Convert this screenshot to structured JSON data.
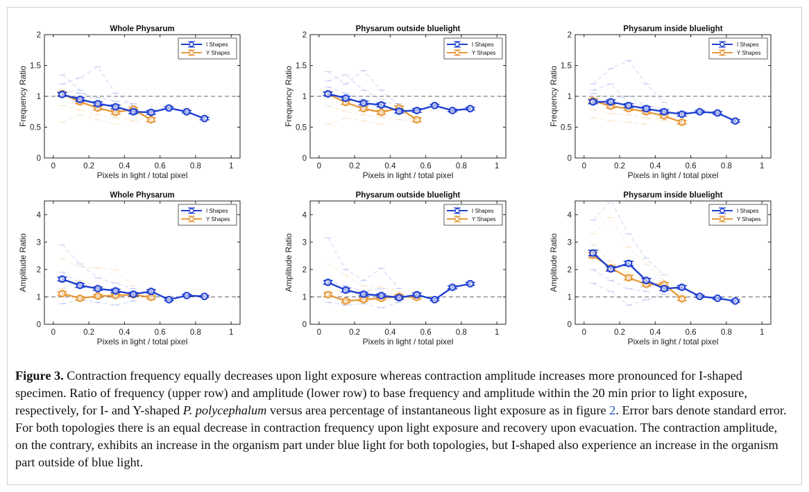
{
  "caption": {
    "label": "Figure 3.",
    "text1": " Contraction frequency equally decreases upon light exposure whereas contraction amplitude increases more pronounced for I-shaped specimen. Ratio of frequency (upper row) and amplitude (lower row) to base frequency and amplitude within the 20 min prior to light exposure, respectively, for I- and Y-shaped ",
    "species": "P. polycephalum",
    "text2": "  versus area percentage of instantaneous light exposure as in figure ",
    "figref": "2",
    "text3": ". Error bars denote standard error. For both topologies there is an equal decrease in contraction frequency upon light exposure and recovery upon evacuation. The contraction amplitude, on the contrary, exhibits an increase in the organism part under blue light for both topologies, but I-shaped also experience an increase in the organism part outside of blue light."
  },
  "colors": {
    "I": "#1f3fd1",
    "Y": "#e69a3c",
    "axis": "#222222",
    "ref": "#666666"
  },
  "chart_data": [
    {
      "type": "line",
      "title": "Whole Physarum",
      "xlabel": "Pixels in light / total pixel",
      "ylabel": "Frequency Ratio",
      "xlim": [
        -0.05,
        1.05
      ],
      "ylim": [
        0,
        2
      ],
      "xticks": [
        0,
        0.2,
        0.4,
        0.6,
        0.8,
        1
      ],
      "xticklabels": [
        "0",
        "0.2",
        "0.4",
        "0.6",
        "0.8",
        "1"
      ],
      "yticks": [
        0,
        0.5,
        1,
        1.5,
        2
      ],
      "yticklabels": [
        "0",
        "0.5",
        "1",
        "1.5",
        "2"
      ],
      "reference_line": 1,
      "legend": [
        "I Shapes",
        "Y Shapes"
      ],
      "legend_position": "top-right",
      "series": [
        {
          "name": "I Shapes",
          "x": [
            0.05,
            0.15,
            0.25,
            0.35,
            0.45,
            0.55,
            0.65,
            0.75,
            0.85
          ],
          "y": [
            1.03,
            0.95,
            0.88,
            0.83,
            0.75,
            0.74,
            0.81,
            0.75,
            0.64
          ],
          "err": [
            0.03,
            0.03,
            0.03,
            0.03,
            0.03,
            0.03,
            0.02,
            0.02,
            0.02
          ]
        },
        {
          "name": "Y Shapes",
          "x": [
            0.05,
            0.15,
            0.25,
            0.35,
            0.45,
            0.55
          ],
          "y": [
            1.04,
            0.91,
            0.81,
            0.74,
            0.79,
            0.62
          ],
          "err": [
            0.03,
            0.03,
            0.03,
            0.03,
            0.03,
            0.03
          ]
        }
      ],
      "individual_traces": [
        [
          0.05,
          1.35,
          0.15,
          1.1,
          0.25,
          0.9,
          0.35,
          0.85,
          0.45,
          0.7
        ],
        [
          0.05,
          0.58,
          0.15,
          0.7,
          0.25,
          0.62,
          0.35,
          0.55
        ],
        [
          0.05,
          1.2,
          0.15,
          1.3,
          0.25,
          1.48,
          0.35,
          1.05,
          0.45,
          0.85
        ],
        [
          0.05,
          0.85,
          0.15,
          0.78,
          0.25,
          0.7,
          0.35,
          0.65,
          0.45,
          0.6,
          0.55,
          0.58
        ],
        [
          0.05,
          1.1,
          0.15,
          1.05,
          0.25,
          0.98,
          0.35,
          0.92,
          0.45,
          0.88
        ]
      ]
    },
    {
      "type": "line",
      "title": "Physarum outside bluelight",
      "xlabel": "Pixels in light / total pixel",
      "ylabel": "Frequency Ratio",
      "xlim": [
        -0.05,
        1.05
      ],
      "ylim": [
        0,
        2
      ],
      "xticks": [
        0,
        0.2,
        0.4,
        0.6,
        0.8,
        1
      ],
      "xticklabels": [
        "0",
        "0.2",
        "0.4",
        "0.6",
        "0.8",
        "1"
      ],
      "yticks": [
        0,
        0.5,
        1,
        1.5,
        2
      ],
      "yticklabels": [
        "0",
        "0.5",
        "1",
        "1.5",
        "2"
      ],
      "reference_line": 1,
      "legend": [
        "I Shapes",
        "Y Shapes"
      ],
      "legend_position": "top-right",
      "series": [
        {
          "name": "I Shapes",
          "x": [
            0.05,
            0.15,
            0.25,
            0.35,
            0.45,
            0.55,
            0.65,
            0.75,
            0.85
          ],
          "y": [
            1.04,
            0.97,
            0.89,
            0.86,
            0.76,
            0.77,
            0.85,
            0.77,
            0.8
          ],
          "err": [
            0.03,
            0.03,
            0.03,
            0.03,
            0.03,
            0.03,
            0.02,
            0.02,
            0.02
          ]
        },
        {
          "name": "Y Shapes",
          "x": [
            0.05,
            0.15,
            0.25,
            0.35,
            0.45,
            0.55
          ],
          "y": [
            1.04,
            0.9,
            0.8,
            0.74,
            0.81,
            0.62
          ],
          "err": [
            0.03,
            0.03,
            0.03,
            0.03,
            0.03,
            0.03
          ]
        }
      ],
      "individual_traces": [
        [
          0.05,
          1.4,
          0.15,
          1.2,
          0.25,
          1.42,
          0.35,
          1.1,
          0.45,
          0.85
        ],
        [
          0.05,
          0.55,
          0.15,
          0.65,
          0.25,
          0.6,
          0.35,
          0.55
        ],
        [
          0.05,
          1.15,
          0.15,
          1.05,
          0.25,
          0.95,
          0.35,
          0.9,
          0.45,
          0.88
        ],
        [
          0.05,
          0.85,
          0.15,
          0.75,
          0.25,
          0.7,
          0.35,
          0.66,
          0.45,
          0.62,
          0.55,
          0.58
        ],
        [
          0.05,
          1.25,
          0.15,
          1.35,
          0.25,
          1.1,
          0.35,
          0.95
        ]
      ]
    },
    {
      "type": "line",
      "title": "Physarum inside bluelight",
      "xlabel": "Pixels in light / total pixel",
      "ylabel": "Frequency Ratio",
      "xlim": [
        -0.05,
        1.05
      ],
      "ylim": [
        0,
        2
      ],
      "xticks": [
        0,
        0.2,
        0.4,
        0.6,
        0.8,
        1
      ],
      "xticklabels": [
        "0",
        "0.2",
        "0.4",
        "0.6",
        "0.8",
        "1"
      ],
      "yticks": [
        0,
        0.5,
        1,
        1.5,
        2
      ],
      "yticklabels": [
        "0",
        "0.5",
        "1",
        "1.5",
        "2"
      ],
      "reference_line": 1,
      "legend": [
        "I Shapes",
        "Y Shapes"
      ],
      "legend_position": "top-right",
      "series": [
        {
          "name": "I Shapes",
          "x": [
            0.05,
            0.15,
            0.25,
            0.35,
            0.45,
            0.55,
            0.65,
            0.75,
            0.85
          ],
          "y": [
            0.91,
            0.91,
            0.85,
            0.8,
            0.75,
            0.71,
            0.75,
            0.73,
            0.6
          ],
          "err": [
            0.03,
            0.03,
            0.03,
            0.03,
            0.03,
            0.03,
            0.02,
            0.02,
            0.02
          ]
        },
        {
          "name": "Y Shapes",
          "x": [
            0.05,
            0.15,
            0.25,
            0.35,
            0.45,
            0.55
          ],
          "y": [
            0.93,
            0.84,
            0.8,
            0.75,
            0.68,
            0.58
          ],
          "err": [
            0.03,
            0.03,
            0.03,
            0.03,
            0.03,
            0.03
          ]
        }
      ],
      "individual_traces": [
        [
          0.05,
          1.2,
          0.15,
          1.45,
          0.25,
          1.58,
          0.35,
          1.2,
          0.45,
          0.9
        ],
        [
          0.05,
          0.65,
          0.15,
          0.6,
          0.25,
          0.58,
          0.35,
          0.55
        ],
        [
          0.05,
          1.05,
          0.15,
          0.95,
          0.25,
          1.0,
          0.35,
          0.85,
          0.45,
          0.8
        ],
        [
          0.05,
          0.78,
          0.15,
          0.72,
          0.25,
          0.7,
          0.35,
          0.65,
          0.45,
          0.6,
          0.55,
          0.55
        ],
        [
          0.05,
          1.1,
          0.15,
          1.2,
          0.25,
          0.9,
          0.35,
          0.85
        ]
      ]
    },
    {
      "type": "line",
      "title": "Whole Physarum",
      "xlabel": "Pixels in light / total pixel",
      "ylabel": "Amplitude Ratio",
      "xlim": [
        -0.05,
        1.05
      ],
      "ylim": [
        0,
        4.5
      ],
      "xticks": [
        0,
        0.2,
        0.4,
        0.6,
        0.8,
        1
      ],
      "xticklabels": [
        "0",
        "0.2",
        "0.4",
        "0.6",
        "0.8",
        "1"
      ],
      "yticks": [
        0,
        1,
        2,
        3,
        4
      ],
      "yticklabels": [
        "0",
        "1",
        "2",
        "3",
        "4"
      ],
      "reference_line": 1,
      "legend": [
        "I Shapes",
        "Y Shapes"
      ],
      "legend_position": "top-right",
      "series": [
        {
          "name": "I Shapes",
          "x": [
            0.05,
            0.15,
            0.25,
            0.35,
            0.45,
            0.55,
            0.65,
            0.75,
            0.85
          ],
          "y": [
            1.65,
            1.42,
            1.3,
            1.22,
            1.1,
            1.2,
            0.9,
            1.05,
            1.02
          ],
          "err": [
            0.07,
            0.07,
            0.06,
            0.06,
            0.06,
            0.06,
            0.04,
            0.04,
            0.03
          ]
        },
        {
          "name": "Y Shapes",
          "x": [
            0.05,
            0.15,
            0.25,
            0.35,
            0.45,
            0.55
          ],
          "y": [
            1.12,
            0.95,
            1.03,
            1.05,
            1.08,
            0.98
          ],
          "err": [
            0.07,
            0.06,
            0.06,
            0.06,
            0.06,
            0.06
          ]
        }
      ],
      "individual_traces": [
        [
          0.05,
          2.9,
          0.15,
          2.2,
          0.25,
          1.7,
          0.35,
          1.5,
          0.45,
          1.3
        ],
        [
          0.05,
          2.4,
          0.15,
          2.1,
          0.25,
          2.05,
          0.35,
          2.0,
          0.45,
          1.4
        ],
        [
          0.05,
          0.75,
          0.15,
          0.9,
          0.25,
          0.8,
          0.35,
          0.7,
          0.45,
          0.85
        ],
        [
          0.05,
          1.3,
          0.15,
          1.6,
          0.25,
          1.4,
          0.35,
          1.2,
          0.45,
          1.1,
          0.55,
          1.0
        ],
        [
          0.05,
          1.9,
          0.15,
          1.5,
          0.25,
          1.25,
          0.35,
          1.3
        ]
      ]
    },
    {
      "type": "line",
      "title": "Physarum outside bluelight",
      "xlabel": "Pixels in light / total pixel",
      "ylabel": "Amplitude Ratio",
      "xlim": [
        -0.05,
        1.05
      ],
      "ylim": [
        0,
        4.5
      ],
      "xticks": [
        0,
        0.2,
        0.4,
        0.6,
        0.8,
        1
      ],
      "xticklabels": [
        "0",
        "0.2",
        "0.4",
        "0.6",
        "0.8",
        "1"
      ],
      "yticks": [
        0,
        1,
        2,
        3,
        4
      ],
      "yticklabels": [
        "0",
        "1",
        "2",
        "3",
        "4"
      ],
      "reference_line": 1,
      "legend": [
        "I Shapes",
        "Y Shapes"
      ],
      "legend_position": "top-right",
      "series": [
        {
          "name": "I Shapes",
          "x": [
            0.05,
            0.15,
            0.25,
            0.35,
            0.45,
            0.55,
            0.65,
            0.75,
            0.85
          ],
          "y": [
            1.53,
            1.25,
            1.1,
            1.05,
            0.97,
            1.08,
            0.9,
            1.35,
            1.48
          ],
          "err": [
            0.07,
            0.07,
            0.06,
            0.06,
            0.06,
            0.06,
            0.04,
            0.05,
            0.05
          ]
        },
        {
          "name": "Y Shapes",
          "x": [
            0.05,
            0.15,
            0.25,
            0.35,
            0.45,
            0.55
          ],
          "y": [
            1.08,
            0.85,
            0.9,
            0.95,
            1.02,
            0.98
          ],
          "err": [
            0.07,
            0.06,
            0.06,
            0.06,
            0.06,
            0.06
          ]
        }
      ],
      "individual_traces": [
        [
          0.05,
          3.15,
          0.15,
          2.0,
          0.25,
          1.6,
          0.35,
          2.05,
          0.45,
          1.3
        ],
        [
          0.05,
          2.2,
          0.15,
          1.8,
          0.25,
          1.4,
          0.35,
          1.35,
          0.45,
          1.2
        ],
        [
          0.05,
          0.8,
          0.15,
          0.7,
          0.25,
          0.75,
          0.35,
          0.6,
          0.45,
          0.8
        ],
        [
          0.05,
          1.2,
          0.15,
          1.3,
          0.25,
          1.15,
          0.35,
          1.1,
          0.45,
          1.05,
          0.55,
          0.95
        ],
        [
          0.05,
          1.6,
          0.15,
          1.4,
          0.25,
          1.2,
          0.35,
          1.3
        ]
      ]
    },
    {
      "type": "line",
      "title": "Physarum inside bluelight",
      "xlabel": "Pixels in light / total pixel",
      "ylabel": "Amplitude Ratio",
      "xlim": [
        -0.05,
        1.05
      ],
      "ylim": [
        0,
        4.5
      ],
      "xticks": [
        0,
        0.2,
        0.4,
        0.6,
        0.8,
        1
      ],
      "xticklabels": [
        "0",
        "0.2",
        "0.4",
        "0.6",
        "0.8",
        "1"
      ],
      "yticks": [
        0,
        1,
        2,
        3,
        4
      ],
      "yticklabels": [
        "0",
        "1",
        "2",
        "3",
        "4"
      ],
      "reference_line": 1,
      "legend": [
        "I Shapes",
        "Y Shapes"
      ],
      "legend_position": "top-right",
      "series": [
        {
          "name": "I Shapes",
          "x": [
            0.05,
            0.15,
            0.25,
            0.35,
            0.45,
            0.55,
            0.65,
            0.75,
            0.85
          ],
          "y": [
            2.6,
            2.02,
            2.22,
            1.6,
            1.3,
            1.35,
            1.02,
            0.95,
            0.85
          ],
          "err": [
            0.1,
            0.08,
            0.08,
            0.07,
            0.07,
            0.06,
            0.04,
            0.04,
            0.04
          ]
        },
        {
          "name": "Y Shapes",
          "x": [
            0.05,
            0.15,
            0.25,
            0.35,
            0.45,
            0.55
          ],
          "y": [
            2.52,
            2.06,
            1.7,
            1.46,
            1.45,
            0.93
          ],
          "err": [
            0.1,
            0.08,
            0.08,
            0.07,
            0.07,
            0.06
          ]
        }
      ],
      "individual_traces": [
        [
          0.05,
          3.8,
          0.15,
          4.5,
          0.25,
          3.3,
          0.35,
          2.4,
          0.45,
          1.8
        ],
        [
          0.05,
          3.3,
          0.15,
          3.9,
          0.25,
          2.8,
          0.35,
          2.2,
          0.45,
          1.6
        ],
        [
          0.05,
          1.5,
          0.15,
          1.2,
          0.25,
          0.7,
          0.35,
          0.9,
          0.45,
          1.1
        ],
        [
          0.05,
          2.9,
          0.15,
          2.3,
          0.25,
          1.9,
          0.35,
          1.55,
          0.45,
          1.4,
          0.55,
          1.1
        ],
        [
          0.05,
          2.0,
          0.15,
          1.6,
          0.25,
          1.3,
          0.35,
          1.2
        ]
      ]
    }
  ]
}
